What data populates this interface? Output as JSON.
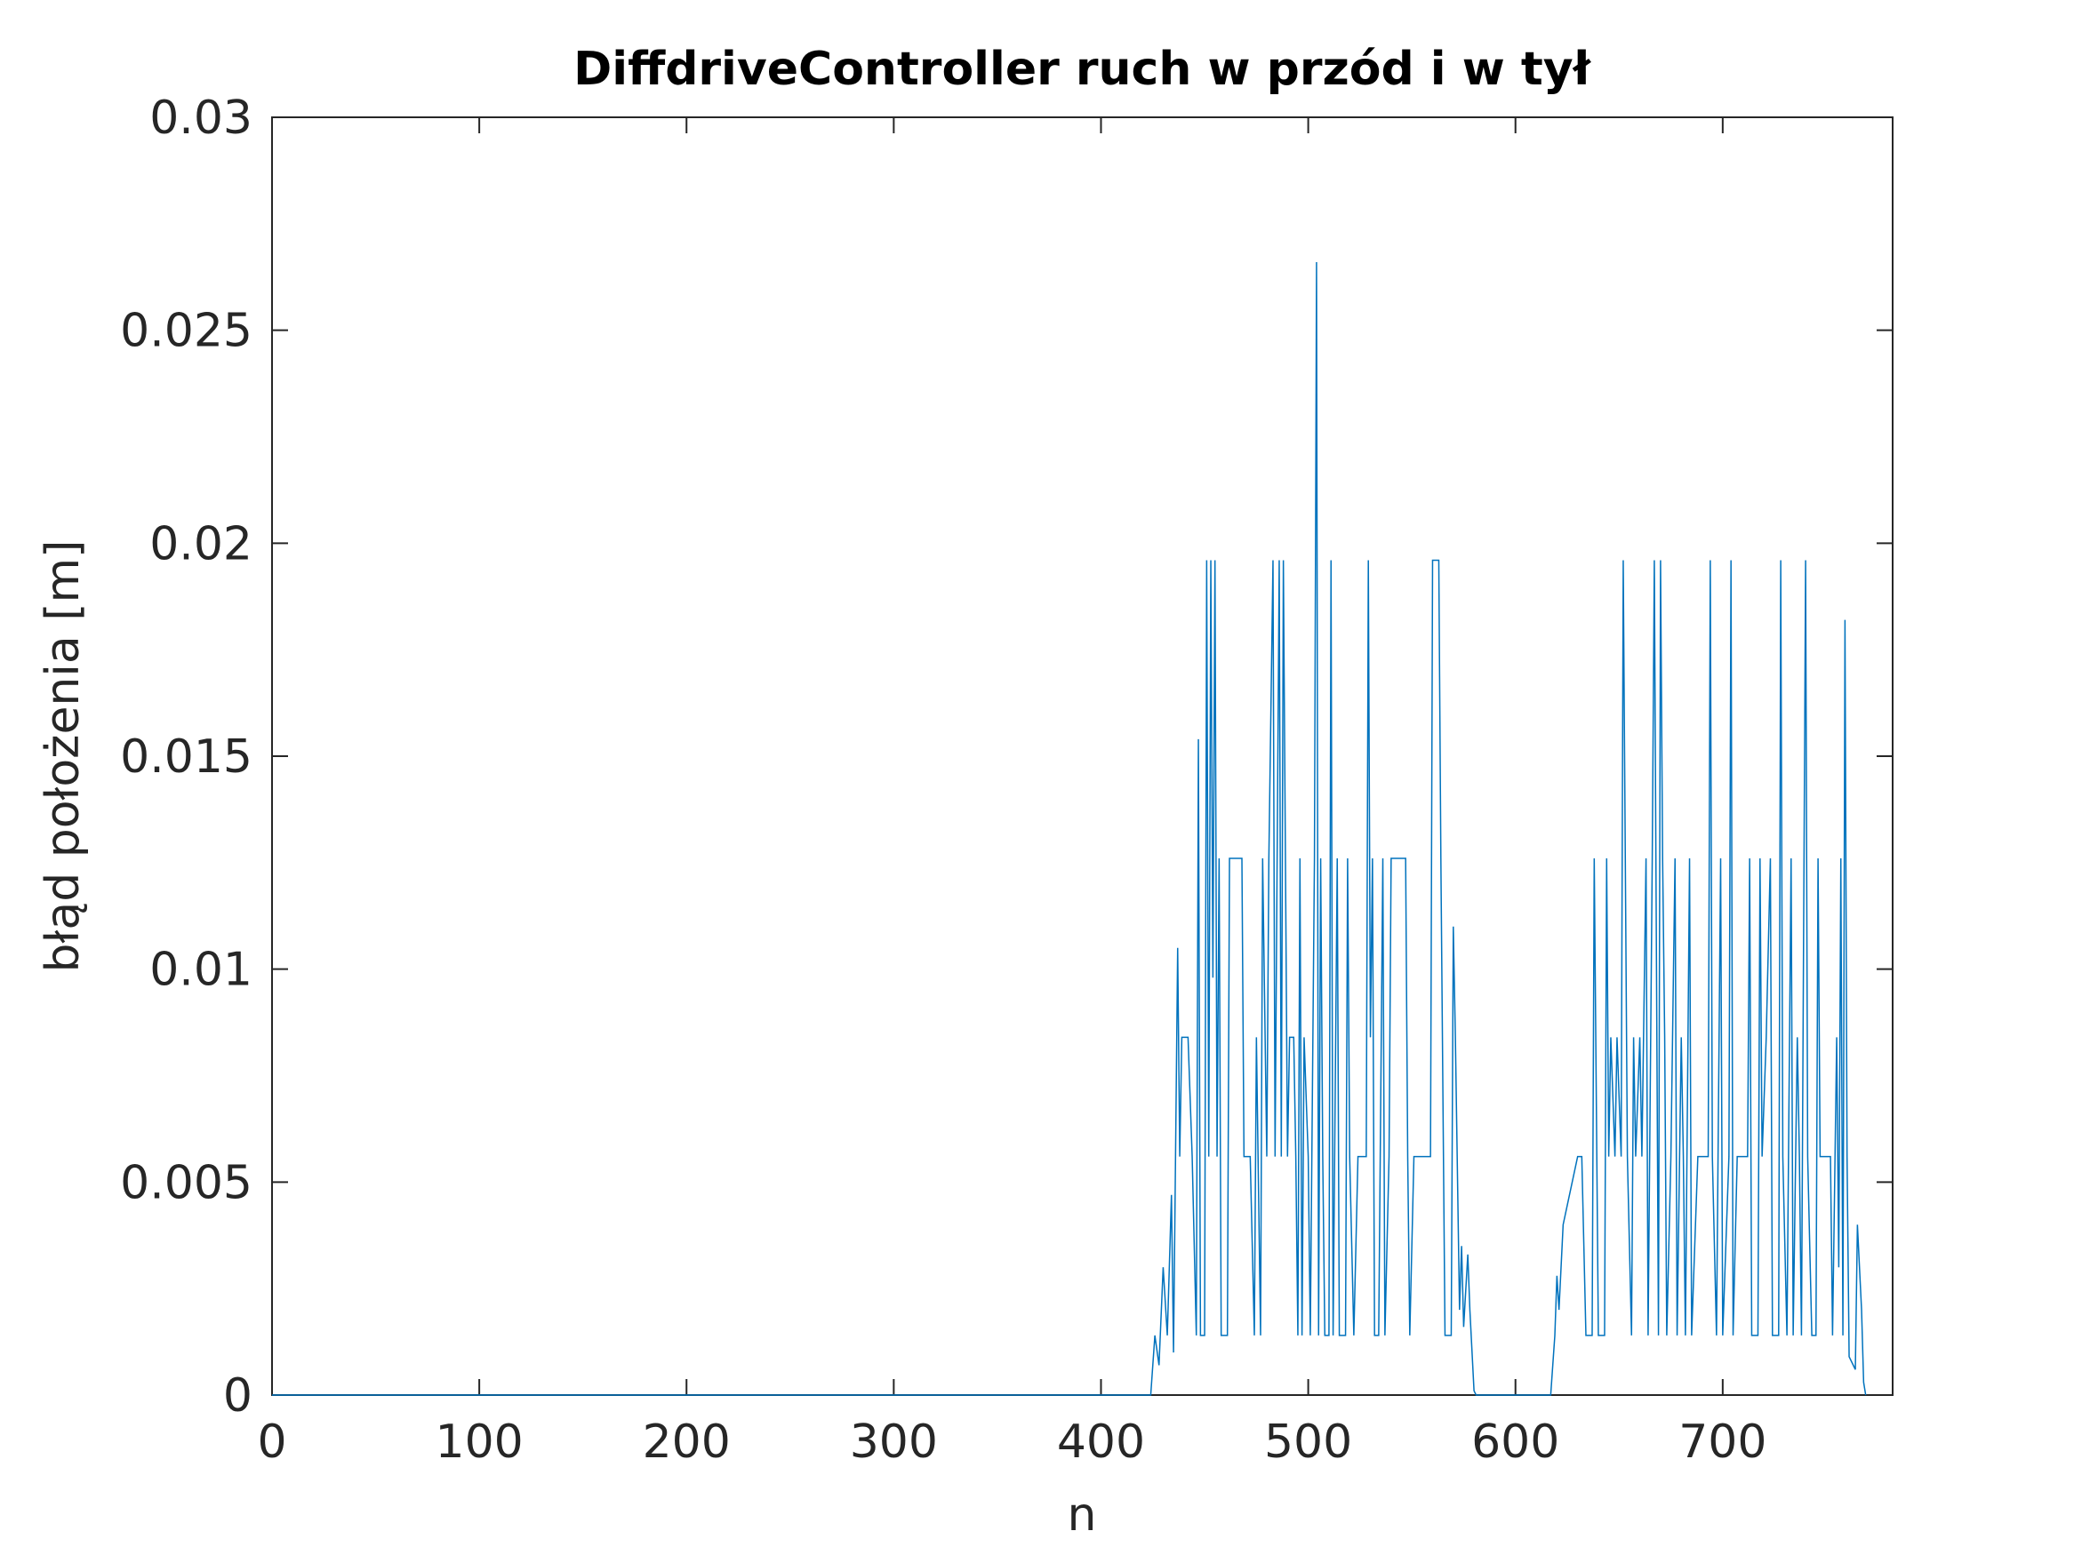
{
  "chart_data": {
    "type": "line",
    "title": "DiffdriveController ruch w przód i w tył",
    "x_label": "n",
    "y_label": "błąd położenia [m]",
    "xlim": [
      0,
      782
    ],
    "ylim": [
      0,
      0.03
    ],
    "xticks": [
      0,
      100,
      200,
      300,
      400,
      500,
      600,
      700
    ],
    "yticks": [
      0,
      0.005,
      0.01,
      0.015,
      0.02,
      0.025,
      0.03
    ],
    "grid": false,
    "series": [
      {
        "color": "#0072bd",
        "x": [
          0,
          424,
          426,
          428,
          430,
          432,
          434,
          435,
          437,
          438,
          439,
          442,
          444,
          446,
          447,
          448,
          450,
          451,
          452,
          453,
          454,
          455,
          456,
          457,
          458,
          461,
          462,
          468,
          469,
          472,
          474,
          475,
          477,
          478,
          480,
          481,
          483,
          484,
          485,
          486,
          487,
          488,
          490,
          491,
          493,
          494,
          495,
          496,
          497,
          498,
          500,
          501,
          503,
          504,
          505,
          506,
          507,
          508,
          510,
          511,
          512,
          514,
          515,
          518,
          519,
          520,
          522,
          524,
          528,
          529,
          530,
          531,
          532,
          534,
          536,
          537,
          539,
          540,
          547,
          548,
          549,
          551,
          559,
          560,
          563,
          564,
          566,
          569,
          570,
          571,
          573,
          574,
          575,
          577,
          578,
          580,
          581,
          617,
          619,
          620,
          621,
          623,
          630,
          632,
          634,
          637,
          638,
          640,
          643,
          644,
          645,
          646,
          648,
          649,
          651,
          652,
          653,
          654,
          656,
          657,
          658,
          660,
          661,
          663,
          664,
          666,
          667,
          669,
          670,
          671,
          672,
          673,
          675,
          677,
          678,
          680,
          681,
          682,
          684,
          685,
          688,
          693,
          694,
          695,
          697,
          699,
          700,
          703,
          704,
          705,
          707,
          712,
          713,
          714,
          717,
          718,
          719,
          721,
          723,
          724,
          727,
          728,
          729,
          731,
          733,
          734,
          736,
          737,
          738,
          740,
          741,
          743,
          745,
          746,
          747,
          752,
          753,
          755,
          756,
          757,
          758,
          759,
          760,
          761,
          764,
          765,
          767,
          768,
          769
        ],
        "values": [
          0,
          0,
          0.0014,
          0.0007,
          0.003,
          0.0014,
          0.0047,
          0.001,
          0.0105,
          0.0056,
          0.0084,
          0.0084,
          0.0056,
          0.0014,
          0.0154,
          0.0014,
          0.0014,
          0.0196,
          0.0056,
          0.0196,
          0.0098,
          0.0196,
          0.0056,
          0.0126,
          0.0014,
          0.0014,
          0.0126,
          0.0126,
          0.0056,
          0.0056,
          0.0014,
          0.0084,
          0.0014,
          0.0126,
          0.0056,
          0.0126,
          0.0196,
          0.0056,
          0.0126,
          0.0196,
          0.0056,
          0.0196,
          0.0056,
          0.0084,
          0.0084,
          0.0056,
          0.0014,
          0.0126,
          0.0014,
          0.0084,
          0.0056,
          0.0014,
          0.0126,
          0.0266,
          0.0014,
          0.0126,
          0.0056,
          0.0014,
          0.0014,
          0.0196,
          0.0014,
          0.0126,
          0.0014,
          0.0014,
          0.0126,
          0.0056,
          0.0014,
          0.0056,
          0.0056,
          0.0196,
          0.0084,
          0.0126,
          0.0014,
          0.0014,
          0.0126,
          0.0014,
          0.0056,
          0.0126,
          0.0126,
          0.0056,
          0.0014,
          0.0056,
          0.0056,
          0.0196,
          0.0196,
          0.0126,
          0.0014,
          0.0014,
          0.011,
          0.0084,
          0.002,
          0.0035,
          0.0016,
          0.0033,
          0.002,
          0.0001,
          0,
          0,
          0.0014,
          0.0028,
          0.002,
          0.004,
          0.0056,
          0.0056,
          0.0014,
          0.0014,
          0.0126,
          0.0014,
          0.0014,
          0.0126,
          0.0056,
          0.0084,
          0.0056,
          0.0084,
          0.0056,
          0.0196,
          0.0126,
          0.0056,
          0.0014,
          0.0084,
          0.0056,
          0.0084,
          0.0056,
          0.0126,
          0.0014,
          0.0126,
          0.0196,
          0.0014,
          0.0196,
          0.0126,
          0.0084,
          0.0014,
          0.0056,
          0.0126,
          0.0014,
          0.0084,
          0.0056,
          0.0014,
          0.0126,
          0.0014,
          0.0056,
          0.0056,
          0.0196,
          0.0056,
          0.0014,
          0.0126,
          0.0014,
          0.0056,
          0.0196,
          0.0014,
          0.0056,
          0.0056,
          0.0126,
          0.0014,
          0.0014,
          0.0126,
          0.0056,
          0.0084,
          0.0126,
          0.0014,
          0.0014,
          0.0196,
          0.0056,
          0.0014,
          0.0126,
          0.0014,
          0.0084,
          0.0056,
          0.0014,
          0.0196,
          0.0056,
          0.0014,
          0.0014,
          0.0126,
          0.0056,
          0.0056,
          0.0014,
          0.0084,
          0.003,
          0.0126,
          0.0014,
          0.0182,
          0.0056,
          0.0009,
          0.0006,
          0.004,
          0.002,
          0.0003,
          0
        ]
      }
    ]
  }
}
